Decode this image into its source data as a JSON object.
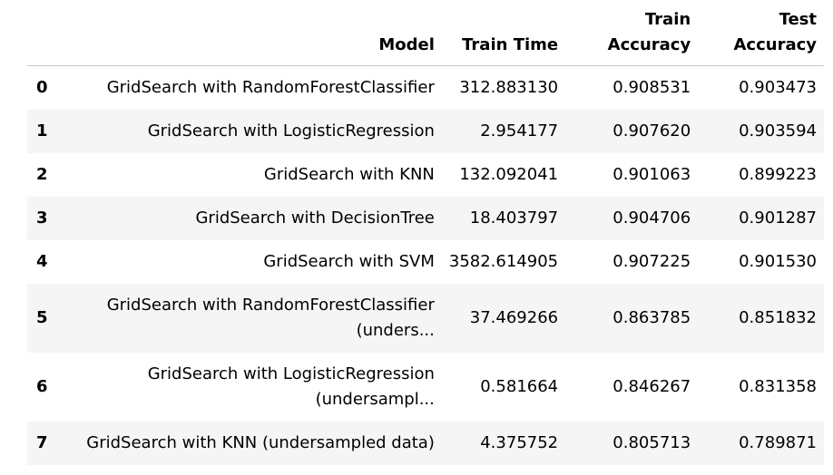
{
  "table": {
    "columns": {
      "index": "",
      "model": "Model",
      "train_time": "Train Time",
      "train_accuracy_line1": "Train",
      "train_accuracy_line2": "Accuracy",
      "test_accuracy_line1": "Test",
      "test_accuracy_line2": "Accuracy"
    },
    "rows": [
      {
        "index": "0",
        "model": "GridSearch with RandomForestClassifier",
        "model_line2": "",
        "train_time": "312.883130",
        "train_accuracy": "0.908531",
        "test_accuracy": "0.903473"
      },
      {
        "index": "1",
        "model": "GridSearch with LogisticRegression",
        "model_line2": "",
        "train_time": "2.954177",
        "train_accuracy": "0.907620",
        "test_accuracy": "0.903594"
      },
      {
        "index": "2",
        "model": "GridSearch with KNN",
        "model_line2": "",
        "train_time": "132.092041",
        "train_accuracy": "0.901063",
        "test_accuracy": "0.899223"
      },
      {
        "index": "3",
        "model": "GridSearch with DecisionTree",
        "model_line2": "",
        "train_time": "18.403797",
        "train_accuracy": "0.904706",
        "test_accuracy": "0.901287"
      },
      {
        "index": "4",
        "model": "GridSearch with SVM",
        "model_line2": "",
        "train_time": "3582.614905",
        "train_accuracy": "0.907225",
        "test_accuracy": "0.901530"
      },
      {
        "index": "5",
        "model": "GridSearch with RandomForestClassifier",
        "model_line2": "(unders...",
        "train_time": "37.469266",
        "train_accuracy": "0.863785",
        "test_accuracy": "0.851832"
      },
      {
        "index": "6",
        "model": "GridSearch with LogisticRegression",
        "model_line2": "(undersampl...",
        "train_time": "0.581664",
        "train_accuracy": "0.846267",
        "test_accuracy": "0.831358"
      },
      {
        "index": "7",
        "model": "GridSearch with KNN (undersampled data)",
        "model_line2": "",
        "train_time": "4.375752",
        "train_accuracy": "0.805713",
        "test_accuracy": "0.789871"
      }
    ]
  }
}
